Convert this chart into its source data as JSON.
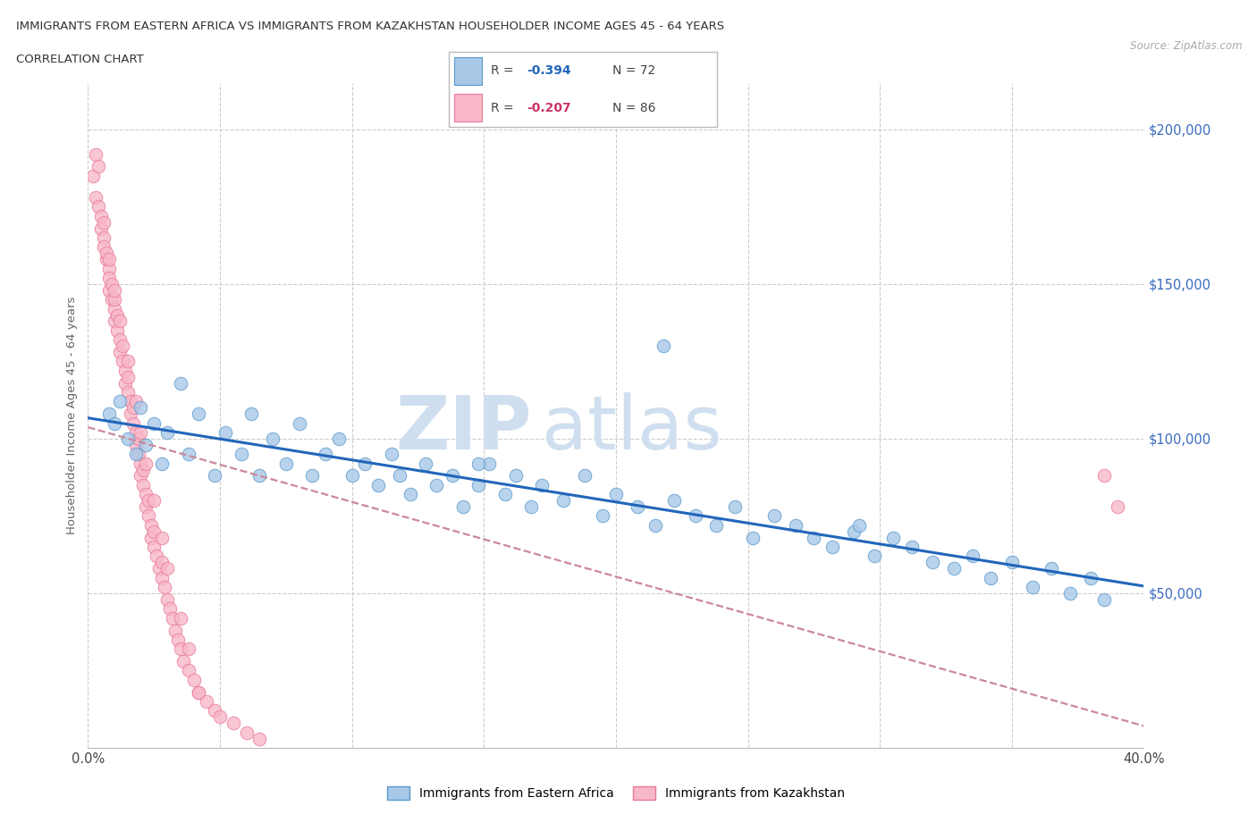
{
  "title_line1": "IMMIGRANTS FROM EASTERN AFRICA VS IMMIGRANTS FROM KAZAKHSTAN HOUSEHOLDER INCOME AGES 45 - 64 YEARS",
  "title_line2": "CORRELATION CHART",
  "source_text": "Source: ZipAtlas.com",
  "ylabel": "Householder Income Ages 45 - 64 years",
  "xlim": [
    0.0,
    0.4
  ],
  "ylim": [
    0,
    215000
  ],
  "yticks": [
    0,
    50000,
    100000,
    150000,
    200000
  ],
  "xticks": [
    0.0,
    0.05,
    0.1,
    0.15,
    0.2,
    0.25,
    0.3,
    0.35,
    0.4
  ],
  "r_eastern_africa": -0.394,
  "n_eastern_africa": 72,
  "r_kazakhstan": -0.207,
  "n_kazakhstan": 86,
  "eastern_africa_color": "#a8c8e8",
  "eastern_africa_edge": "#5899cc",
  "kazakhstan_color": "#f8b8c8",
  "kazakhstan_edge": "#e87898",
  "regression_blue_color": "#2266bb",
  "regression_pink_color": "#cc8899",
  "watermark_color": "#d0dff0",
  "legend_r_color_blue": "#2266bb",
  "legend_r_color_pink": "#cc3366",
  "eastern_africa_x": [
    0.008,
    0.01,
    0.012,
    0.015,
    0.018,
    0.02,
    0.022,
    0.025,
    0.028,
    0.03,
    0.035,
    0.038,
    0.042,
    0.048,
    0.052,
    0.058,
    0.062,
    0.065,
    0.07,
    0.075,
    0.08,
    0.085,
    0.09,
    0.095,
    0.1,
    0.105,
    0.11,
    0.115,
    0.118,
    0.122,
    0.128,
    0.132,
    0.138,
    0.142,
    0.148,
    0.152,
    0.158,
    0.162,
    0.168,
    0.172,
    0.18,
    0.188,
    0.195,
    0.2,
    0.208,
    0.215,
    0.222,
    0.23,
    0.238,
    0.245,
    0.252,
    0.26,
    0.268,
    0.275,
    0.282,
    0.29,
    0.298,
    0.305,
    0.312,
    0.32,
    0.328,
    0.335,
    0.342,
    0.35,
    0.358,
    0.365,
    0.372,
    0.38,
    0.385,
    0.292,
    0.218,
    0.148
  ],
  "eastern_africa_y": [
    108000,
    105000,
    112000,
    100000,
    95000,
    110000,
    98000,
    105000,
    92000,
    102000,
    118000,
    95000,
    108000,
    88000,
    102000,
    95000,
    108000,
    88000,
    100000,
    92000,
    105000,
    88000,
    95000,
    100000,
    88000,
    92000,
    85000,
    95000,
    88000,
    82000,
    92000,
    85000,
    88000,
    78000,
    85000,
    92000,
    82000,
    88000,
    78000,
    85000,
    80000,
    88000,
    75000,
    82000,
    78000,
    72000,
    80000,
    75000,
    72000,
    78000,
    68000,
    75000,
    72000,
    68000,
    65000,
    70000,
    62000,
    68000,
    65000,
    60000,
    58000,
    62000,
    55000,
    60000,
    52000,
    58000,
    50000,
    55000,
    48000,
    72000,
    130000,
    92000
  ],
  "kazakhstan_x": [
    0.002,
    0.003,
    0.004,
    0.005,
    0.005,
    0.006,
    0.006,
    0.007,
    0.007,
    0.008,
    0.008,
    0.008,
    0.009,
    0.009,
    0.01,
    0.01,
    0.01,
    0.011,
    0.011,
    0.012,
    0.012,
    0.013,
    0.013,
    0.014,
    0.014,
    0.015,
    0.015,
    0.016,
    0.016,
    0.017,
    0.017,
    0.018,
    0.018,
    0.019,
    0.019,
    0.02,
    0.02,
    0.021,
    0.021,
    0.022,
    0.022,
    0.023,
    0.023,
    0.024,
    0.024,
    0.025,
    0.025,
    0.026,
    0.027,
    0.028,
    0.028,
    0.029,
    0.03,
    0.031,
    0.032,
    0.033,
    0.034,
    0.035,
    0.036,
    0.038,
    0.04,
    0.042,
    0.045,
    0.048,
    0.05,
    0.055,
    0.06,
    0.065,
    0.003,
    0.004,
    0.006,
    0.008,
    0.01,
    0.012,
    0.015,
    0.018,
    0.02,
    0.022,
    0.025,
    0.028,
    0.03,
    0.035,
    0.038,
    0.042,
    0.385,
    0.39
  ],
  "kazakhstan_y": [
    185000,
    178000,
    175000,
    168000,
    172000,
    165000,
    162000,
    158000,
    160000,
    155000,
    152000,
    148000,
    145000,
    150000,
    142000,
    145000,
    138000,
    135000,
    140000,
    132000,
    128000,
    125000,
    130000,
    122000,
    118000,
    115000,
    120000,
    112000,
    108000,
    105000,
    110000,
    102000,
    98000,
    95000,
    100000,
    92000,
    88000,
    85000,
    90000,
    82000,
    78000,
    75000,
    80000,
    72000,
    68000,
    65000,
    70000,
    62000,
    58000,
    55000,
    60000,
    52000,
    48000,
    45000,
    42000,
    38000,
    35000,
    32000,
    28000,
    25000,
    22000,
    18000,
    15000,
    12000,
    10000,
    8000,
    5000,
    3000,
    192000,
    188000,
    170000,
    158000,
    148000,
    138000,
    125000,
    112000,
    102000,
    92000,
    80000,
    68000,
    58000,
    42000,
    32000,
    18000,
    88000,
    78000
  ]
}
